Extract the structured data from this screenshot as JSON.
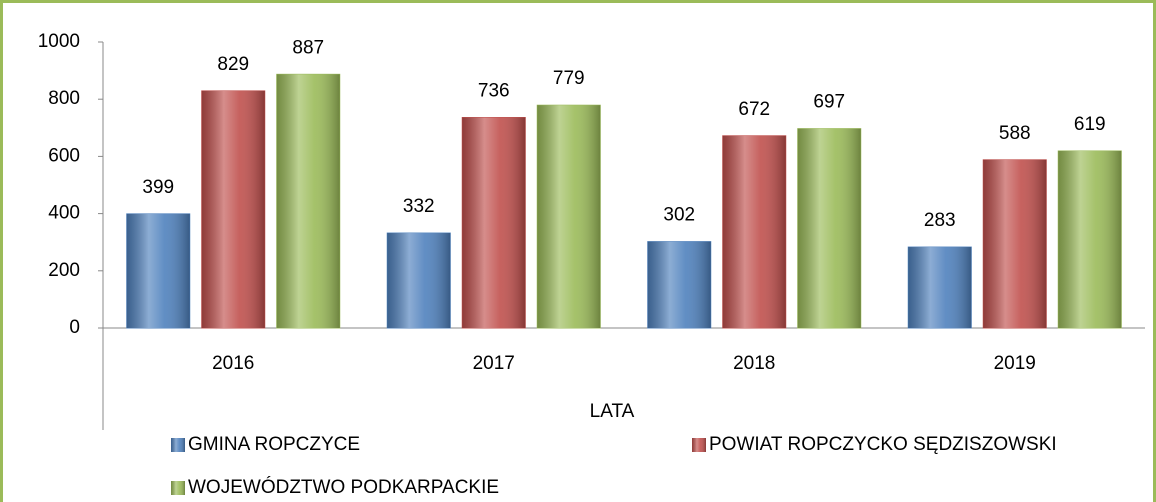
{
  "chart_data": {
    "type": "bar",
    "xlabel": "LATA",
    "categories": [
      "2016",
      "2017",
      "2018",
      "2019"
    ],
    "series": [
      {
        "name": "GMINA ROPCZYCE",
        "color": "#4f81bd",
        "values": [
          399,
          332,
          302,
          283
        ]
      },
      {
        "name": "POWIAT ROPCZYCKO SĘDZISZOWSKI",
        "color": "#c0504d",
        "values": [
          829,
          736,
          672,
          588
        ]
      },
      {
        "name": "WOJEWÓDZTWO PODKARPACKIE",
        "color": "#9bbb59",
        "values": [
          887,
          779,
          697,
          619
        ]
      }
    ],
    "ylim": [
      0,
      1000
    ],
    "yticks": [
      0,
      200,
      400,
      600,
      800,
      1000
    ],
    "grid": false,
    "legend": "bottom",
    "value_labels_shown": true
  }
}
